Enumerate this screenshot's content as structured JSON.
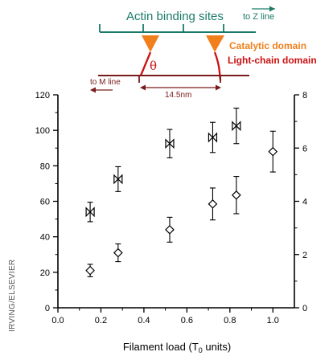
{
  "schematic": {
    "actin_label": "Actin binding sites",
    "z_line_label": "to Z line",
    "m_line_label": "to M line",
    "catalytic_label": "Catalytic domain",
    "light_chain_label": "Light-chain domain",
    "angle_label": "θ",
    "distance_label": "14.5nm",
    "colors": {
      "actin": "#1a7a6a",
      "catalytic": "#f07f1c",
      "light_chain": "#cc1111",
      "thick": "#7a1a1a"
    }
  },
  "credit": "IRVING/ELSEVIER",
  "chart_data": {
    "type": "scatter",
    "xlabel": "Filament load (T",
    "xlabel_sub": "0",
    "xlabel_suffix": " units)",
    "xlim": [
      0.0,
      1.1
    ],
    "xticks": [
      "0.0",
      "0.2",
      "0.4",
      "0.6",
      "0.8",
      "1.0"
    ],
    "ylim_left": [
      0,
      120
    ],
    "yticks_left": [
      "0",
      "20",
      "40",
      "60",
      "80",
      "100",
      "120"
    ],
    "ylim_right": [
      0,
      8
    ],
    "yticks_right": [
      "0",
      "2",
      "4",
      "6",
      "8"
    ],
    "grid": false,
    "series": [
      {
        "marker": "bowtie",
        "axis": "left",
        "points": [
          {
            "x": 0.15,
            "y": 54,
            "err": 5.5
          },
          {
            "x": 0.28,
            "y": 72.5,
            "err": 7
          },
          {
            "x": 0.52,
            "y": 92.5,
            "err": 8
          },
          {
            "x": 0.72,
            "y": 96,
            "err": 8.5
          },
          {
            "x": 0.83,
            "y": 102.5,
            "err": 10
          }
        ]
      },
      {
        "marker": "diamond",
        "axis": "left",
        "points": [
          {
            "x": 0.15,
            "y": 21,
            "err": 3.5
          },
          {
            "x": 0.28,
            "y": 31,
            "err": 5
          },
          {
            "x": 0.52,
            "y": 44,
            "err": 7
          },
          {
            "x": 0.72,
            "y": 58.5,
            "err": 9
          },
          {
            "x": 0.83,
            "y": 63.5,
            "err": 10.5
          },
          {
            "x": 1.0,
            "y": 88,
            "err": 11.5
          }
        ]
      }
    ]
  }
}
